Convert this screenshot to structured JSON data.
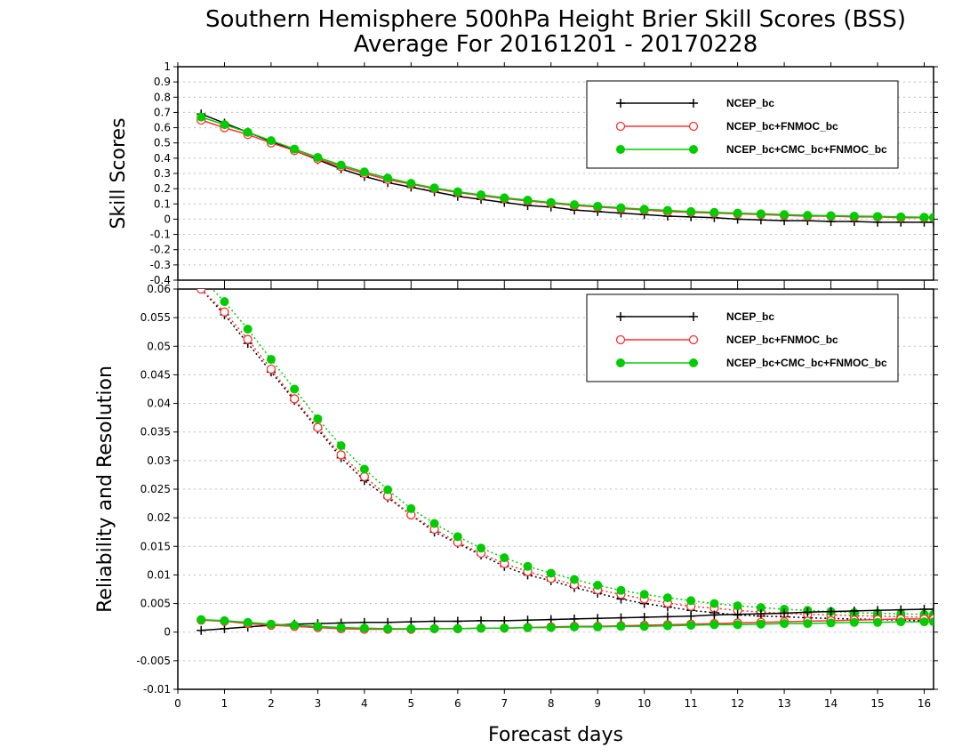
{
  "title_line1": "Southern Hemisphere 500hPa Height Brier Skill Scores (BSS)",
  "title_line2": "Average For 20161201 - 20170228",
  "xlabel": "Forecast days",
  "colors": {
    "ncep": "#000000",
    "fnmoc": "#ff3030",
    "cmc": "#00cc00",
    "grid": "#bbbbbb"
  },
  "chart_data": [
    {
      "type": "line",
      "panel": "top",
      "ylabel": "Skill Scores",
      "xlim": [
        0,
        16.2
      ],
      "ylim": [
        -0.4,
        1
      ],
      "xticks": [
        0,
        1,
        2,
        3,
        4,
        5,
        6,
        7,
        8,
        9,
        10,
        11,
        12,
        13,
        14,
        15,
        16
      ],
      "yticks": [
        -0.4,
        -0.3,
        -0.2,
        -0.1,
        0,
        0.1,
        0.2,
        0.3,
        0.4,
        0.5,
        0.6,
        0.7,
        0.8,
        0.9,
        1
      ],
      "ytick_labels": [
        "-0.4",
        "-0.3",
        "-0.2",
        "-0.1",
        "0",
        "0.1",
        "0.2",
        "0.3",
        "0.4",
        "0.5",
        "0.6",
        "0.7",
        "0.8",
        "0.9",
        "1"
      ],
      "grid": true,
      "legend_position": "top-right",
      "x": [
        0.5,
        1,
        1.5,
        2,
        2.5,
        3,
        3.5,
        4,
        4.5,
        5,
        5.5,
        6,
        6.5,
        7,
        7.5,
        8,
        8.5,
        9,
        9.5,
        10,
        10.5,
        11,
        11.5,
        12,
        12.5,
        13,
        13.5,
        14,
        14.5,
        15,
        15.5,
        16,
        16.2
      ],
      "series": [
        {
          "name": "NCEP_bc",
          "color_key": "ncep",
          "marker": "plus",
          "values": [
            0.69,
            0.63,
            0.57,
            0.51,
            0.45,
            0.39,
            0.33,
            0.28,
            0.24,
            0.21,
            0.18,
            0.15,
            0.13,
            0.11,
            0.09,
            0.08,
            0.06,
            0.05,
            0.04,
            0.03,
            0.02,
            0.015,
            0.01,
            0.0,
            -0.005,
            -0.01,
            -0.01,
            -0.015,
            -0.015,
            -0.02,
            -0.02,
            -0.02,
            -0.02
          ]
        },
        {
          "name": "NCEP_bc+FNMOC_bc",
          "color_key": "fnmoc",
          "marker": "circle",
          "values": [
            0.65,
            0.6,
            0.555,
            0.5,
            0.45,
            0.395,
            0.345,
            0.3,
            0.26,
            0.23,
            0.2,
            0.175,
            0.155,
            0.135,
            0.12,
            0.105,
            0.09,
            0.08,
            0.07,
            0.06,
            0.05,
            0.045,
            0.04,
            0.035,
            0.03,
            0.025,
            0.02,
            0.02,
            0.015,
            0.015,
            0.01,
            0.01,
            0.01
          ]
        },
        {
          "name": "NCEP_bc+CMC_bc+FNMOC_bc",
          "color_key": "cmc",
          "marker": "dot",
          "values": [
            0.67,
            0.62,
            0.57,
            0.515,
            0.46,
            0.405,
            0.355,
            0.31,
            0.27,
            0.235,
            0.205,
            0.18,
            0.16,
            0.14,
            0.125,
            0.11,
            0.095,
            0.085,
            0.075,
            0.065,
            0.058,
            0.05,
            0.045,
            0.04,
            0.035,
            0.03,
            0.025,
            0.023,
            0.02,
            0.018,
            0.015,
            0.013,
            0.012
          ]
        }
      ]
    },
    {
      "type": "line",
      "panel": "bottom",
      "ylabel": "Reliability and Resolution",
      "xlim": [
        0,
        16.2
      ],
      "ylim": [
        -0.01,
        0.06
      ],
      "xticks": [
        0,
        1,
        2,
        3,
        4,
        5,
        6,
        7,
        8,
        9,
        10,
        11,
        12,
        13,
        14,
        15,
        16
      ],
      "yticks": [
        -0.01,
        -0.005,
        0,
        0.005,
        0.01,
        0.015,
        0.02,
        0.025,
        0.03,
        0.035,
        0.04,
        0.045,
        0.05,
        0.055,
        0.06
      ],
      "ytick_labels": [
        "-0.01",
        "-0.005",
        "0",
        "0.005",
        "0.01",
        "0.015",
        "0.02",
        "0.025",
        "0.03",
        "0.035",
        "0.04",
        "0.045",
        "0.05",
        "0.055",
        "0.06"
      ],
      "grid": true,
      "legend_position": "top-right",
      "x": [
        0.5,
        1,
        1.5,
        2,
        2.5,
        3,
        3.5,
        4,
        4.5,
        5,
        5.5,
        6,
        6.5,
        7,
        7.5,
        8,
        8.5,
        9,
        9.5,
        10,
        10.5,
        11,
        11.5,
        12,
        12.5,
        13,
        13.5,
        14,
        14.5,
        15,
        15.5,
        16,
        16.2
      ],
      "series": [
        {
          "name": "NCEP_bc",
          "role": "resolution",
          "color_key": "ncep",
          "marker": "plus",
          "line": "dotted",
          "values": [
            0.06,
            0.0555,
            0.0505,
            0.0455,
            0.0405,
            0.0355,
            0.0305,
            0.0265,
            0.0235,
            0.0205,
            0.0175,
            0.0155,
            0.0135,
            0.0115,
            0.01,
            0.009,
            0.0078,
            0.0068,
            0.0058,
            0.005,
            0.0044,
            0.0038,
            0.0034,
            0.003,
            0.0028,
            0.0027,
            0.0025,
            0.0024,
            0.0023,
            0.0022,
            0.0021,
            0.002,
            0.002
          ]
        },
        {
          "name": "NCEP_bc+FNMOC_bc",
          "role": "resolution",
          "color_key": "fnmoc",
          "marker": "circle",
          "line": "dotted",
          "values": [
            0.06,
            0.056,
            0.0512,
            0.046,
            0.0408,
            0.0358,
            0.031,
            0.0272,
            0.0238,
            0.0205,
            0.018,
            0.0157,
            0.0138,
            0.012,
            0.0106,
            0.0094,
            0.0083,
            0.0074,
            0.0066,
            0.0058,
            0.0051,
            0.0045,
            0.0042,
            0.0038,
            0.0035,
            0.0033,
            0.0031,
            0.003,
            0.0029,
            0.0028,
            0.0027,
            0.0026,
            0.0026
          ]
        },
        {
          "name": "NCEP_bc+CMC_bc+FNMOC_bc",
          "role": "resolution",
          "color_key": "cmc",
          "marker": "dot",
          "line": "dotted",
          "values": [
            0.062,
            0.0578,
            0.053,
            0.0477,
            0.0425,
            0.0373,
            0.0326,
            0.0285,
            0.0249,
            0.0216,
            0.019,
            0.0167,
            0.0147,
            0.013,
            0.0115,
            0.0103,
            0.0092,
            0.0082,
            0.0073,
            0.0066,
            0.006,
            0.0055,
            0.005,
            0.0046,
            0.0043,
            0.004,
            0.0038,
            0.0036,
            0.0034,
            0.0033,
            0.0032,
            0.0031,
            0.0031
          ]
        },
        {
          "name": "NCEP_bc",
          "role": "reliability",
          "color_key": "ncep",
          "marker": "plus",
          "line": "solid",
          "values": [
            0.0003,
            0.0006,
            0.0009,
            0.0012,
            0.0014,
            0.0015,
            0.0016,
            0.0017,
            0.0017,
            0.0018,
            0.0019,
            0.0019,
            0.002,
            0.002,
            0.0021,
            0.0022,
            0.0023,
            0.0024,
            0.0025,
            0.0026,
            0.0027,
            0.0028,
            0.003,
            0.0031,
            0.0032,
            0.0033,
            0.0035,
            0.0036,
            0.0037,
            0.0038,
            0.0039,
            0.004,
            0.004
          ]
        },
        {
          "name": "NCEP_bc+FNMOC_bc",
          "role": "reliability",
          "color_key": "fnmoc",
          "marker": "circle",
          "line": "solid",
          "values": [
            0.0021,
            0.0019,
            0.0015,
            0.0012,
            0.001,
            0.0008,
            0.0006,
            0.0005,
            0.0005,
            0.0005,
            0.0006,
            0.0006,
            0.0007,
            0.0007,
            0.0008,
            0.0009,
            0.001,
            0.001,
            0.0011,
            0.0012,
            0.0013,
            0.0014,
            0.0015,
            0.0016,
            0.0017,
            0.0018,
            0.0019,
            0.002,
            0.0021,
            0.0022,
            0.0023,
            0.0023,
            0.0023
          ]
        },
        {
          "name": "NCEP_bc+CMC_bc+FNMOC_bc",
          "role": "reliability",
          "color_key": "cmc",
          "marker": "dot",
          "line": "solid",
          "values": [
            0.0022,
            0.002,
            0.0017,
            0.0014,
            0.0012,
            0.001,
            0.0008,
            0.0007,
            0.0006,
            0.0006,
            0.0006,
            0.0006,
            0.0007,
            0.0007,
            0.0008,
            0.0008,
            0.0009,
            0.0009,
            0.001,
            0.001,
            0.0011,
            0.0012,
            0.0013,
            0.0013,
            0.0014,
            0.0015,
            0.0015,
            0.0016,
            0.0017,
            0.0017,
            0.0018,
            0.0018,
            0.0018
          ]
        }
      ]
    }
  ]
}
